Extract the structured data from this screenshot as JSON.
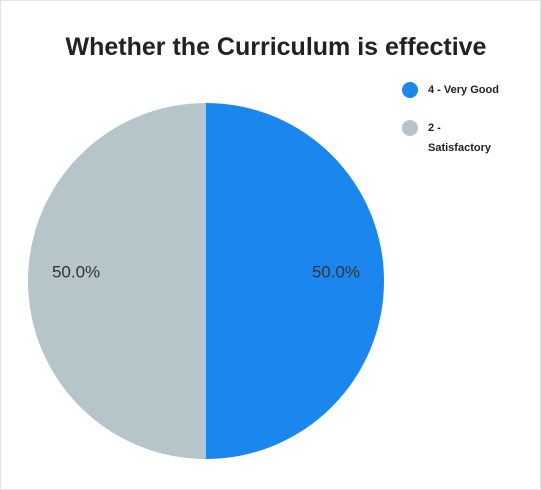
{
  "chart_data": {
    "type": "pie",
    "title": "Whether the Curriculum is effective",
    "categories": [
      "4 - Very Good",
      "2 - Satisfactory"
    ],
    "values": [
      50,
      50
    ],
    "value_labels": [
      "50.0%",
      "50.0%"
    ],
    "colors": [
      "#1b86ee",
      "#b5c5c9"
    ],
    "legend": "top-right"
  }
}
